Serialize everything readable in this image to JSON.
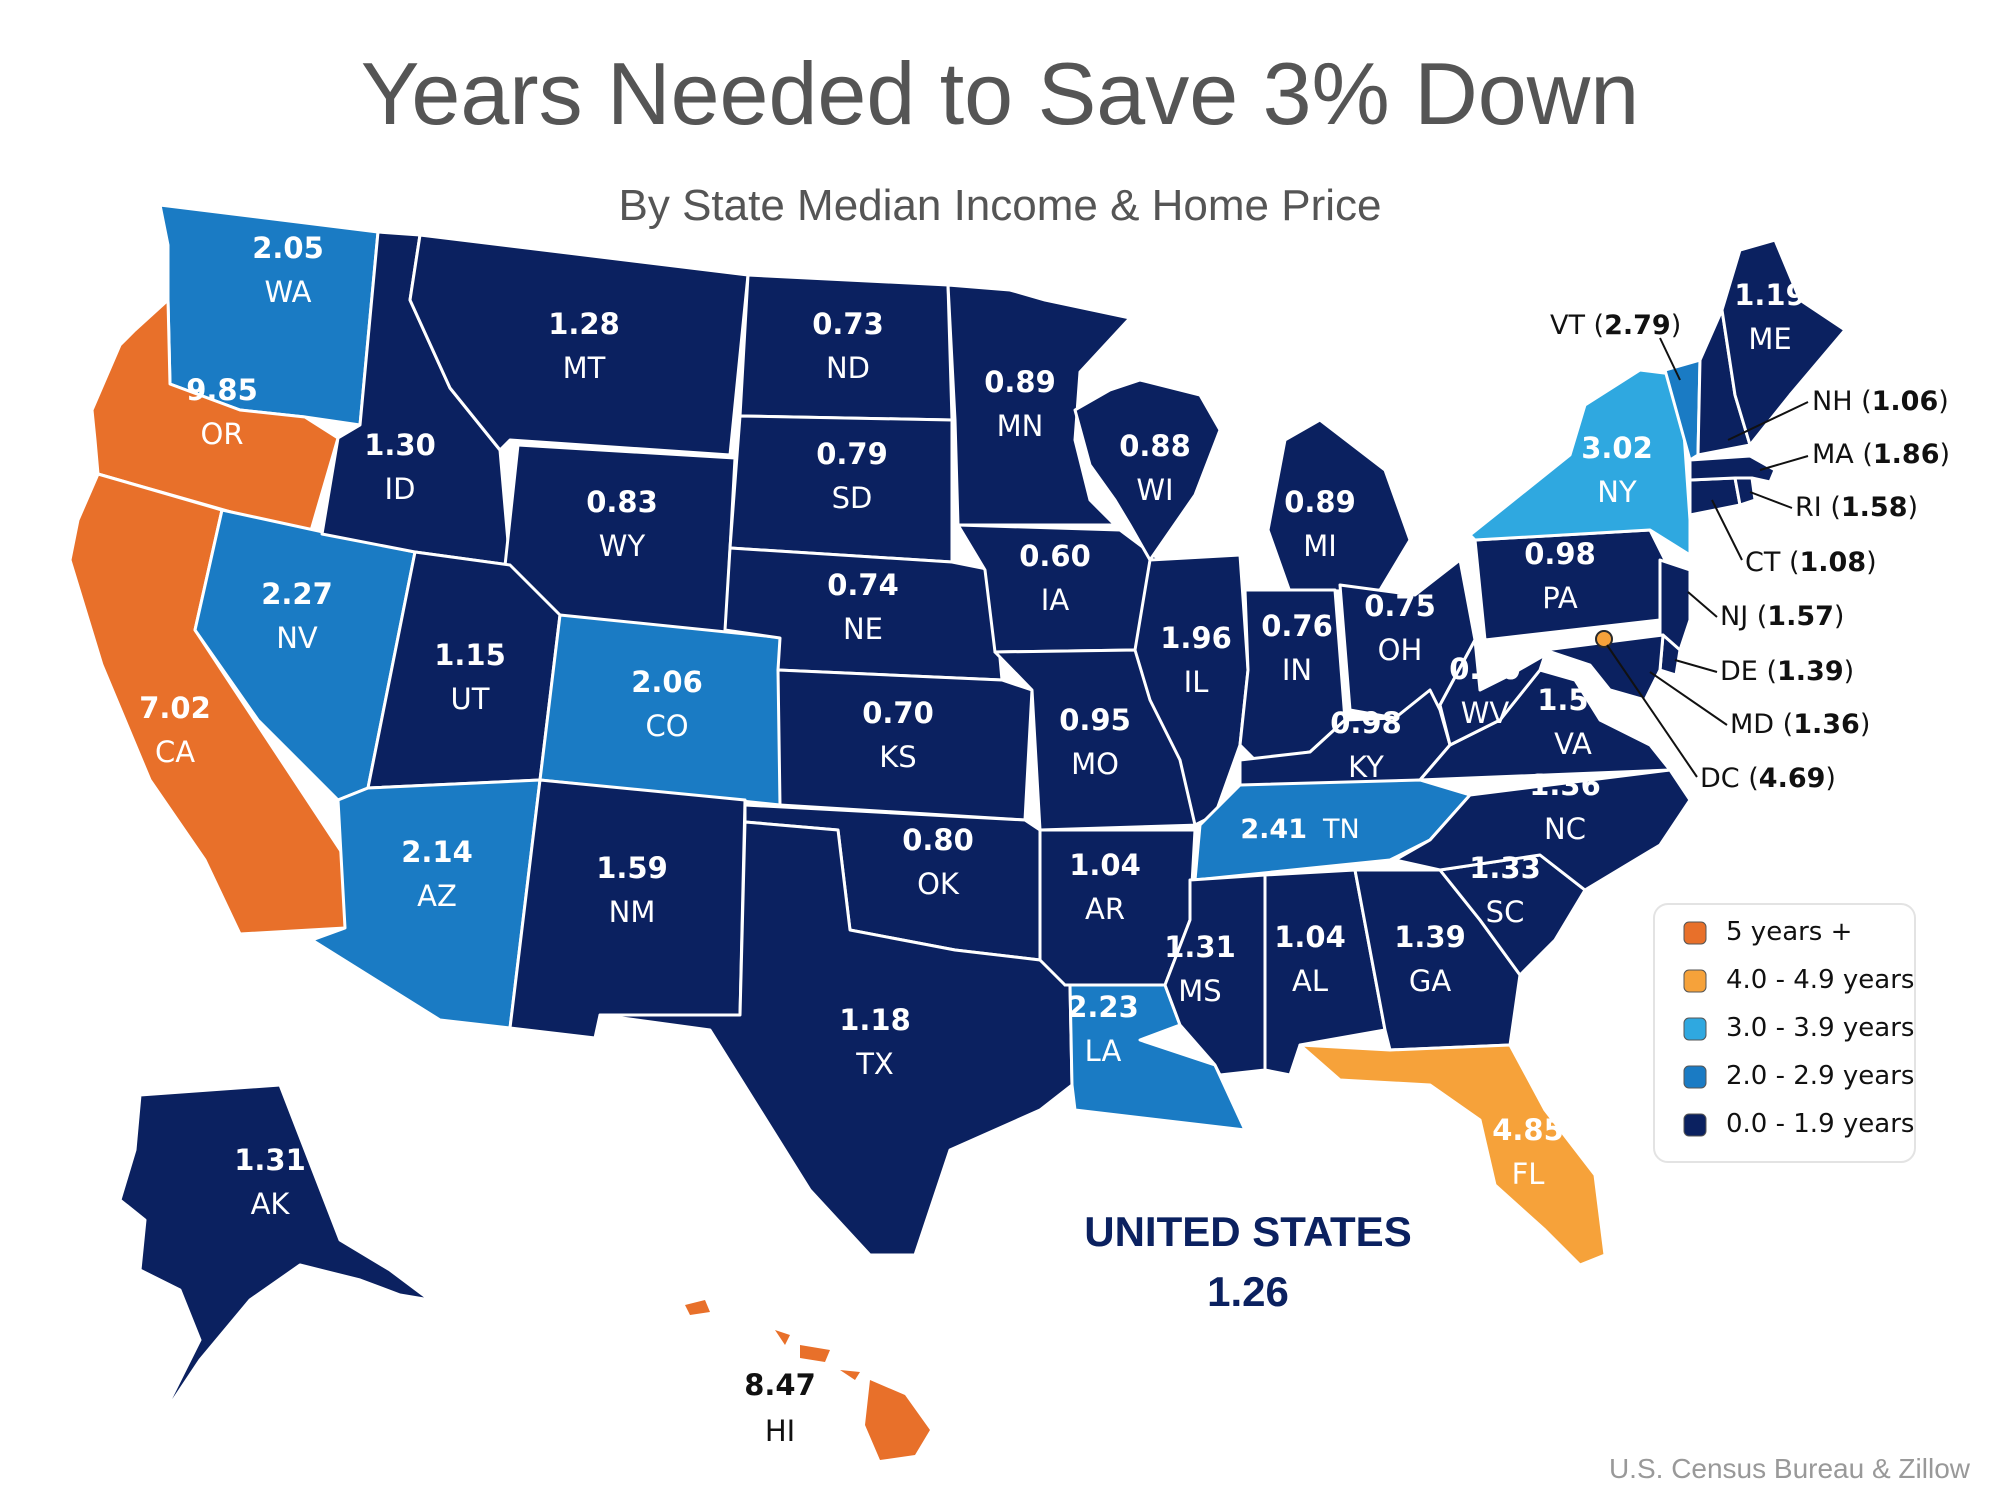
{
  "title": "Years Needed to Save 3% Down",
  "subtitle": "By State Median Income & Home Price",
  "source": "U.S. Census Bureau & Zillow",
  "national": {
    "label": "UNITED STATES",
    "value": "1.26"
  },
  "colors": {
    "5 years +": "#E8702A",
    "4.0 - 4.9 years": "#F6A23A",
    "3.0 - 3.9 years": "#2FA8E0",
    "2.0 - 2.9 years": "#1A7BC4",
    "0.0 - 1.9 years": "#0B2160",
    "border": "#ffffff",
    "title": "#555555",
    "national_text": "#0B2160"
  },
  "legend": [
    {
      "label": "5 years +",
      "color": "#E8702A"
    },
    {
      "label": "4.0 - 4.9 years",
      "color": "#F6A23A"
    },
    {
      "label": "3.0 - 3.9 years",
      "color": "#2FA8E0"
    },
    {
      "label": "2.0 - 2.9 years",
      "color": "#1A7BC4"
    },
    {
      "label": "0.0 - 1.9 years",
      "color": "#0B2160"
    }
  ],
  "states": [
    {
      "abbr": "WA",
      "value": "2.05"
    },
    {
      "abbr": "OR",
      "value": "9.85"
    },
    {
      "abbr": "CA",
      "value": "7.02"
    },
    {
      "abbr": "ID",
      "value": "1.30"
    },
    {
      "abbr": "NV",
      "value": "2.27"
    },
    {
      "abbr": "MT",
      "value": "1.28"
    },
    {
      "abbr": "WY",
      "value": "0.83"
    },
    {
      "abbr": "UT",
      "value": "1.15"
    },
    {
      "abbr": "AZ",
      "value": "2.14"
    },
    {
      "abbr": "CO",
      "value": "2.06"
    },
    {
      "abbr": "NM",
      "value": "1.59"
    },
    {
      "abbr": "ND",
      "value": "0.73"
    },
    {
      "abbr": "SD",
      "value": "0.79"
    },
    {
      "abbr": "NE",
      "value": "0.74"
    },
    {
      "abbr": "KS",
      "value": "0.70"
    },
    {
      "abbr": "OK",
      "value": "0.80"
    },
    {
      "abbr": "TX",
      "value": "1.18"
    },
    {
      "abbr": "MN",
      "value": "0.89"
    },
    {
      "abbr": "IA",
      "value": "0.60"
    },
    {
      "abbr": "MO",
      "value": "0.95"
    },
    {
      "abbr": "AR",
      "value": "1.04"
    },
    {
      "abbr": "LA",
      "value": "2.23"
    },
    {
      "abbr": "WI",
      "value": "0.88"
    },
    {
      "abbr": "IL",
      "value": "1.96"
    },
    {
      "abbr": "MI",
      "value": "0.89"
    },
    {
      "abbr": "IN",
      "value": "0.76"
    },
    {
      "abbr": "OH",
      "value": "0.75"
    },
    {
      "abbr": "KY",
      "value": "0.98"
    },
    {
      "abbr": "TN",
      "value": "2.41"
    },
    {
      "abbr": "MS",
      "value": "1.31"
    },
    {
      "abbr": "AL",
      "value": "1.04"
    },
    {
      "abbr": "GA",
      "value": "1.39"
    },
    {
      "abbr": "FL",
      "value": "4.85"
    },
    {
      "abbr": "SC",
      "value": "1.33"
    },
    {
      "abbr": "NC",
      "value": "1.36"
    },
    {
      "abbr": "VA",
      "value": "1.51"
    },
    {
      "abbr": "WV",
      "value": "0.80"
    },
    {
      "abbr": "PA",
      "value": "0.98"
    },
    {
      "abbr": "NY",
      "value": "3.02"
    },
    {
      "abbr": "ME",
      "value": "1.19"
    },
    {
      "abbr": "AK",
      "value": "1.31"
    },
    {
      "abbr": "HI",
      "value": "8.47"
    },
    {
      "abbr": "VT",
      "value": "2.79"
    },
    {
      "abbr": "NH",
      "value": "1.06"
    },
    {
      "abbr": "MA",
      "value": "1.86"
    },
    {
      "abbr": "RI",
      "value": "1.58"
    },
    {
      "abbr": "CT",
      "value": "1.08"
    },
    {
      "abbr": "NJ",
      "value": "1.57"
    },
    {
      "abbr": "DE",
      "value": "1.39"
    },
    {
      "abbr": "MD",
      "value": "1.36"
    },
    {
      "abbr": "DC",
      "value": "4.69"
    }
  ]
}
